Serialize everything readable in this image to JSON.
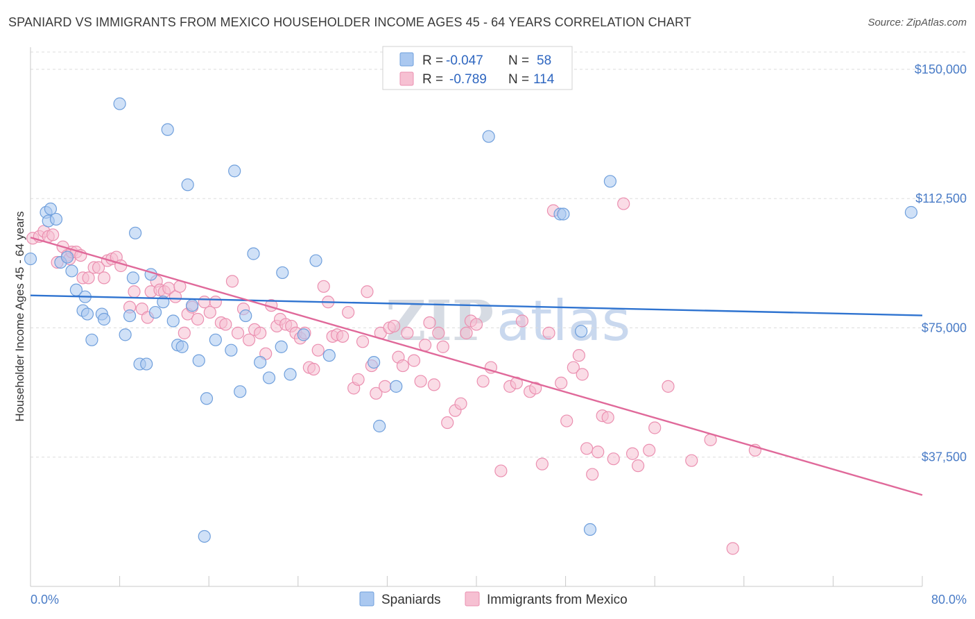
{
  "title": "SPANIARD VS IMMIGRANTS FROM MEXICO HOUSEHOLDER INCOME AGES 45 - 64 YEARS CORRELATION CHART",
  "source": "Source: ZipAtlas.com",
  "watermark": {
    "zip": "ZIP",
    "atlas": "atlas"
  },
  "colors": {
    "blue_fill": "#aac8f0",
    "blue_stroke": "#6f9fdc",
    "blue_line": "#2e73d0",
    "pink_fill": "#f6c0d2",
    "pink_stroke": "#eb8fb0",
    "pink_line": "#e0699a",
    "grid": "#dcdcdc",
    "tick_label": "#4a7cc7"
  },
  "legend": {
    "rows": [
      {
        "r_label": "R = ",
        "r_value": "-0.047",
        "n_label": "N = ",
        "n_value": "58"
      },
      {
        "r_label": "R = ",
        "r_value": "-0.789",
        "n_label": "N = ",
        "n_value": "114"
      }
    ]
  },
  "chart_data": {
    "type": "scatter",
    "title": "SPANIARD VS IMMIGRANTS FROM MEXICO HOUSEHOLDER INCOME AGES 45 - 64 YEARS CORRELATION CHART",
    "xlabel": "",
    "ylabel": "Householder Income Ages 45 - 64 years",
    "xlim": [
      0,
      80
    ],
    "ylim": [
      0,
      155000
    ],
    "x_tick_labels": [
      "0.0%",
      "80.0%"
    ],
    "y_ticks": [
      37500,
      75000,
      112500,
      150000
    ],
    "y_tick_labels": [
      "$37,500",
      "$75,000",
      "$112,500",
      "$150,000"
    ],
    "grid": true,
    "legend_position": "top-center",
    "series": [
      {
        "name": "Spaniards",
        "color": "#aac8f0",
        "trend": {
          "x": [
            0,
            80
          ],
          "y": [
            84400,
            78600
          ]
        },
        "points": [
          [
            0.0,
            95000
          ],
          [
            1.4,
            108500
          ],
          [
            1.6,
            106000
          ],
          [
            1.8,
            109500
          ],
          [
            2.3,
            106500
          ],
          [
            2.7,
            94000
          ],
          [
            3.3,
            95500
          ],
          [
            3.7,
            91500
          ],
          [
            4.1,
            86000
          ],
          [
            4.7,
            80000
          ],
          [
            4.9,
            84000
          ],
          [
            5.1,
            79000
          ],
          [
            5.5,
            71500
          ],
          [
            6.4,
            79000
          ],
          [
            6.6,
            77500
          ],
          [
            8.0,
            140000
          ],
          [
            8.5,
            73000
          ],
          [
            8.9,
            78500
          ],
          [
            9.2,
            89500
          ],
          [
            9.4,
            102500
          ],
          [
            9.8,
            64500
          ],
          [
            10.4,
            64500
          ],
          [
            10.8,
            90500
          ],
          [
            11.2,
            79500
          ],
          [
            11.9,
            82500
          ],
          [
            12.3,
            132500
          ],
          [
            12.8,
            77000
          ],
          [
            13.2,
            70000
          ],
          [
            13.6,
            69500
          ],
          [
            14.1,
            116500
          ],
          [
            14.5,
            81500
          ],
          [
            15.1,
            65500
          ],
          [
            15.6,
            14500
          ],
          [
            15.8,
            54500
          ],
          [
            16.6,
            71500
          ],
          [
            18.0,
            68500
          ],
          [
            18.3,
            120500
          ],
          [
            18.8,
            56500
          ],
          [
            19.3,
            78500
          ],
          [
            20.0,
            96500
          ],
          [
            20.6,
            65000
          ],
          [
            21.4,
            60500
          ],
          [
            22.5,
            69500
          ],
          [
            22.6,
            91000
          ],
          [
            23.3,
            61500
          ],
          [
            24.5,
            73000
          ],
          [
            25.6,
            94500
          ],
          [
            26.8,
            67000
          ],
          [
            30.8,
            65000
          ],
          [
            31.3,
            46500
          ],
          [
            32.8,
            58000
          ],
          [
            41.1,
            130500
          ],
          [
            47.5,
            108000
          ],
          [
            47.8,
            108000
          ],
          [
            49.4,
            74000
          ],
          [
            50.2,
            16500
          ],
          [
            52.0,
            117500
          ],
          [
            79.0,
            108500
          ]
        ]
      },
      {
        "name": "Immigrants from Mexico",
        "color": "#f6c0d2",
        "trend": {
          "x": [
            0,
            80
          ],
          "y": [
            101200,
            26500
          ]
        },
        "points": [
          [
            0.2,
            101000
          ],
          [
            0.8,
            101500
          ],
          [
            1.2,
            103000
          ],
          [
            1.6,
            101500
          ],
          [
            2.0,
            102000
          ],
          [
            2.4,
            94000
          ],
          [
            2.9,
            98500
          ],
          [
            3.3,
            96000
          ],
          [
            3.5,
            95000
          ],
          [
            3.7,
            97000
          ],
          [
            4.1,
            97000
          ],
          [
            4.5,
            96000
          ],
          [
            4.7,
            89500
          ],
          [
            5.2,
            89500
          ],
          [
            5.7,
            92500
          ],
          [
            6.1,
            92500
          ],
          [
            6.6,
            89500
          ],
          [
            6.9,
            94500
          ],
          [
            7.3,
            95000
          ],
          [
            7.7,
            95500
          ],
          [
            8.1,
            93000
          ],
          [
            8.9,
            81000
          ],
          [
            9.3,
            85500
          ],
          [
            10.0,
            80500
          ],
          [
            10.5,
            78000
          ],
          [
            10.8,
            85500
          ],
          [
            11.3,
            88500
          ],
          [
            11.6,
            86000
          ],
          [
            12.0,
            85500
          ],
          [
            12.4,
            86500
          ],
          [
            13.0,
            84000
          ],
          [
            13.4,
            87000
          ],
          [
            13.8,
            73500
          ],
          [
            14.1,
            79000
          ],
          [
            14.5,
            81000
          ],
          [
            15.0,
            77500
          ],
          [
            15.6,
            82500
          ],
          [
            16.1,
            79500
          ],
          [
            16.6,
            82500
          ],
          [
            17.1,
            76500
          ],
          [
            17.5,
            76000
          ],
          [
            18.1,
            88500
          ],
          [
            18.6,
            73500
          ],
          [
            19.1,
            80500
          ],
          [
            19.6,
            71500
          ],
          [
            20.1,
            74500
          ],
          [
            20.6,
            73500
          ],
          [
            21.1,
            67500
          ],
          [
            21.6,
            81500
          ],
          [
            22.1,
            75500
          ],
          [
            22.4,
            77500
          ],
          [
            22.9,
            76000
          ],
          [
            23.4,
            75500
          ],
          [
            23.8,
            73500
          ],
          [
            24.2,
            72000
          ],
          [
            24.6,
            73500
          ],
          [
            25.0,
            63500
          ],
          [
            25.4,
            63000
          ],
          [
            25.8,
            68500
          ],
          [
            26.3,
            87000
          ],
          [
            26.7,
            82500
          ],
          [
            27.1,
            72500
          ],
          [
            27.5,
            73000
          ],
          [
            28.0,
            72500
          ],
          [
            28.5,
            79500
          ],
          [
            29.0,
            57500
          ],
          [
            29.4,
            60000
          ],
          [
            29.8,
            71000
          ],
          [
            30.2,
            85500
          ],
          [
            30.6,
            64000
          ],
          [
            31.0,
            56000
          ],
          [
            31.4,
            73500
          ],
          [
            31.8,
            58000
          ],
          [
            32.2,
            75000
          ],
          [
            32.6,
            75500
          ],
          [
            33.0,
            66500
          ],
          [
            33.4,
            64000
          ],
          [
            33.8,
            73500
          ],
          [
            34.4,
            65500
          ],
          [
            35.0,
            59500
          ],
          [
            35.4,
            70000
          ],
          [
            35.8,
            76500
          ],
          [
            36.2,
            58500
          ],
          [
            36.6,
            73500
          ],
          [
            37.0,
            69500
          ],
          [
            37.4,
            47500
          ],
          [
            38.1,
            51000
          ],
          [
            38.6,
            53000
          ],
          [
            39.1,
            73500
          ],
          [
            39.5,
            77000
          ],
          [
            40.0,
            76000
          ],
          [
            40.6,
            59500
          ],
          [
            41.3,
            63500
          ],
          [
            42.2,
            33500
          ],
          [
            43.0,
            58000
          ],
          [
            43.6,
            59000
          ],
          [
            44.1,
            77000
          ],
          [
            44.8,
            56500
          ],
          [
            45.3,
            57500
          ],
          [
            45.9,
            35500
          ],
          [
            46.5,
            73500
          ],
          [
            46.9,
            109000
          ],
          [
            47.6,
            59000
          ],
          [
            48.1,
            48000
          ],
          [
            48.7,
            63500
          ],
          [
            49.2,
            67000
          ],
          [
            49.5,
            61500
          ],
          [
            49.9,
            40000
          ],
          [
            50.4,
            32500
          ],
          [
            50.9,
            39000
          ],
          [
            51.3,
            49500
          ],
          [
            51.8,
            49000
          ],
          [
            52.3,
            37000
          ],
          [
            53.2,
            111000
          ],
          [
            54.0,
            38500
          ],
          [
            54.5,
            35000
          ],
          [
            55.5,
            39500
          ],
          [
            56.0,
            46000
          ],
          [
            57.2,
            58000
          ],
          [
            59.3,
            36500
          ],
          [
            61.0,
            42500
          ],
          [
            63.0,
            11000
          ],
          [
            65.0,
            39500
          ]
        ]
      }
    ]
  },
  "bottom_legend": [
    {
      "label": "Spaniards"
    },
    {
      "label": "Immigrants from Mexico"
    }
  ]
}
